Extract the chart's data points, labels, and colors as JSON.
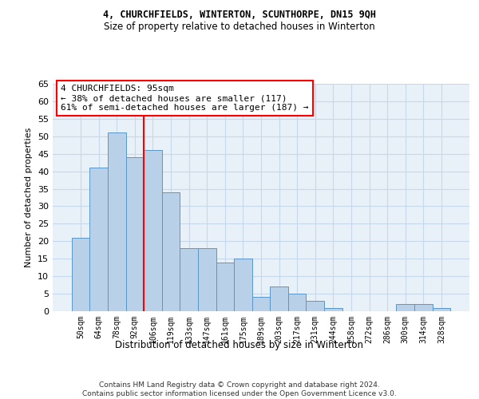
{
  "title1": "4, CHURCHFIELDS, WINTERTON, SCUNTHORPE, DN15 9QH",
  "title2": "Size of property relative to detached houses in Winterton",
  "xlabel": "Distribution of detached houses by size in Winterton",
  "ylabel": "Number of detached properties",
  "categories": [
    "50sqm",
    "64sqm",
    "78sqm",
    "92sqm",
    "106sqm",
    "119sqm",
    "133sqm",
    "147sqm",
    "161sqm",
    "175sqm",
    "189sqm",
    "203sqm",
    "217sqm",
    "231sqm",
    "244sqm",
    "258sqm",
    "272sqm",
    "286sqm",
    "300sqm",
    "314sqm",
    "328sqm"
  ],
  "values": [
    21,
    41,
    51,
    44,
    46,
    34,
    18,
    18,
    14,
    15,
    4,
    7,
    5,
    3,
    1,
    0,
    0,
    0,
    2,
    2,
    1
  ],
  "bar_color": "#b8d0e8",
  "bar_edge_color": "#5a96c8",
  "vline_x": 3.5,
  "vline_color": "red",
  "annotation_text": "4 CHURCHFIELDS: 95sqm\n← 38% of detached houses are smaller (117)\n61% of semi-detached houses are larger (187) →",
  "annotation_box_color": "white",
  "annotation_box_edge": "red",
  "footer": "Contains HM Land Registry data © Crown copyright and database right 2024.\nContains public sector information licensed under the Open Government Licence v3.0.",
  "ylim": [
    0,
    65
  ],
  "yticks": [
    0,
    5,
    10,
    15,
    20,
    25,
    30,
    35,
    40,
    45,
    50,
    55,
    60,
    65
  ],
  "grid_color": "#c8d8ec",
  "background_color": "#e8f0f8"
}
